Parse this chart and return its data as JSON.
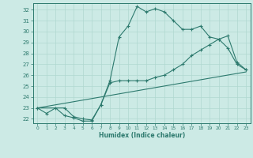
{
  "xlabel": "Humidex (Indice chaleur)",
  "bg_color": "#cceae5",
  "grid_color": "#b0d8d0",
  "line_color": "#2d7a6e",
  "xlim": [
    -0.5,
    23.5
  ],
  "ylim": [
    21.6,
    32.6
  ],
  "xticks": [
    0,
    1,
    2,
    3,
    4,
    5,
    6,
    7,
    8,
    9,
    10,
    11,
    12,
    13,
    14,
    15,
    16,
    17,
    18,
    19,
    20,
    21,
    22,
    23
  ],
  "yticks": [
    22,
    23,
    24,
    25,
    26,
    27,
    28,
    29,
    30,
    31,
    32
  ],
  "line1_x": [
    0,
    1,
    2,
    3,
    4,
    5,
    6,
    7,
    8,
    9,
    10,
    11,
    12,
    13,
    14,
    15,
    16,
    17,
    18,
    19,
    20,
    21,
    22,
    23
  ],
  "line1_y": [
    23.0,
    22.5,
    23.0,
    22.3,
    22.1,
    21.8,
    21.8,
    23.3,
    25.5,
    29.5,
    30.5,
    32.3,
    31.8,
    32.1,
    31.8,
    31.0,
    30.2,
    30.2,
    30.5,
    29.5,
    29.3,
    28.5,
    27.0,
    26.5
  ],
  "line2_x": [
    0,
    3,
    4,
    5,
    6,
    7,
    8,
    9,
    10,
    11,
    12,
    13,
    14,
    15,
    16,
    17,
    18,
    19,
    20,
    21,
    22,
    23
  ],
  "line2_y": [
    23.0,
    23.0,
    22.2,
    22.0,
    21.9,
    23.3,
    25.3,
    25.5,
    25.5,
    25.5,
    25.5,
    25.8,
    26.0,
    26.5,
    27.0,
    27.8,
    28.3,
    28.8,
    29.3,
    29.6,
    27.2,
    26.5
  ],
  "line3_x": [
    0,
    23
  ],
  "line3_y": [
    23.0,
    26.3
  ]
}
